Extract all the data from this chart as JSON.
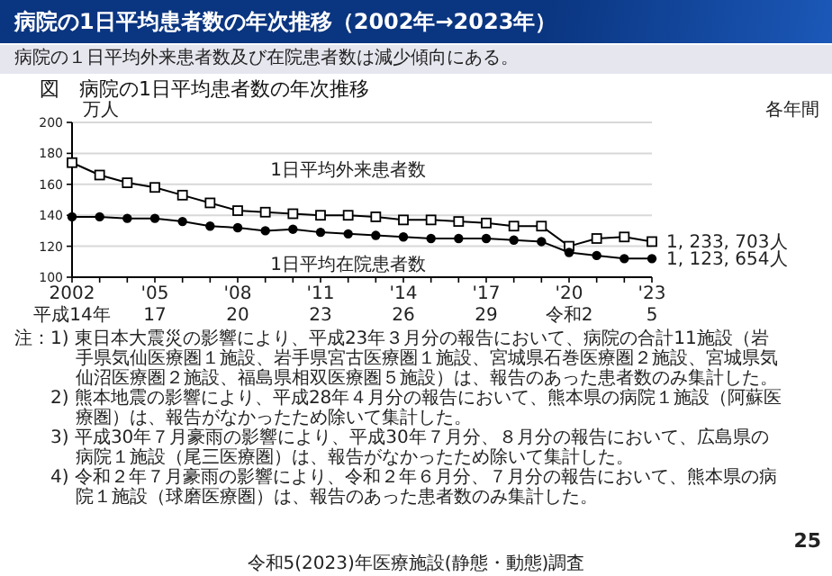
{
  "chart_data": {
    "type": "line",
    "title": "病院の1日平均患者数の年次推移（2002年→2023年）",
    "subtitle": "病院の１日平均外来患者数及び在院患者数は減少傾向にある。",
    "ylabel": "万人",
    "categories": [
      "2002\n平成14年",
      null,
      null,
      "'05\n17",
      null,
      null,
      "'08\n20",
      null,
      null,
      "'11\n23",
      null,
      null,
      "'14\n26",
      null,
      null,
      "'17\n29",
      null,
      null,
      "'20\n令和2",
      null,
      null,
      "'23\n5"
    ],
    "ylim": [
      100,
      200
    ],
    "yticks": [
      100,
      120,
      140,
      160,
      180,
      200
    ],
    "grid": "y",
    "line_style": "solid",
    "series": [
      {
        "name": "1日平均外来患者数",
        "color": "#000000",
        "marker": "square",
        "values": [
          174,
          166,
          161,
          158,
          153,
          148,
          143,
          142,
          141,
          140,
          140,
          139,
          137,
          137,
          136,
          135,
          133,
          133,
          120,
          125,
          126,
          123
        ]
      },
      {
        "name": "1日平均在院患者数",
        "color": "#000000",
        "marker": "circle",
        "values": [
          139,
          139,
          138,
          138,
          136,
          133,
          132,
          130,
          131,
          129,
          128,
          127,
          126,
          125,
          125,
          125,
          124,
          123,
          116,
          114,
          112,
          112
        ]
      }
    ],
    "annotations": [
      "図　病院の1日平均患者数の年次推移",
      "各年間",
      {
        "text": "1, 233, 703人",
        "x": "'23\n5",
        "y": 123
      },
      {
        "text": "1, 123, 654人",
        "x": "'23\n5",
        "y": 112
      },
      "注：1) 東日本大震災の影響により、平成23年３月分の報告において、病院の合計11施設（岩手県気仙医療圏１施設、岩手県宮古医療圏１施設、宮城県石巻医療圏２施設、宮城県気仙沼医療圏２施設、福島県相双医療圏５施設）は、報告のあった患者数のみ集計した。",
      "2) 熊本地震の影響により、平成28年４月分の報告において、熊本県の病院１施設（阿蘇医療圏）は、報告がなかったため除いて集計した。",
      "3) 平成30年７月豪雨の影響により、平成30年７月分、８月分の報告において、広島県の病院１施設（尾三医療圏）は、報告がなかったため除いて集計した。",
      "4) 令和２年７月豪雨の影響により、令和２年６月分、７月分の報告において、熊本県の病院１施設（球磨医療圏）は、報告のあった患者数のみ集計した。",
      "令和5(2023)年医療施設(静態・動態)調査",
      "25"
    ]
  }
}
